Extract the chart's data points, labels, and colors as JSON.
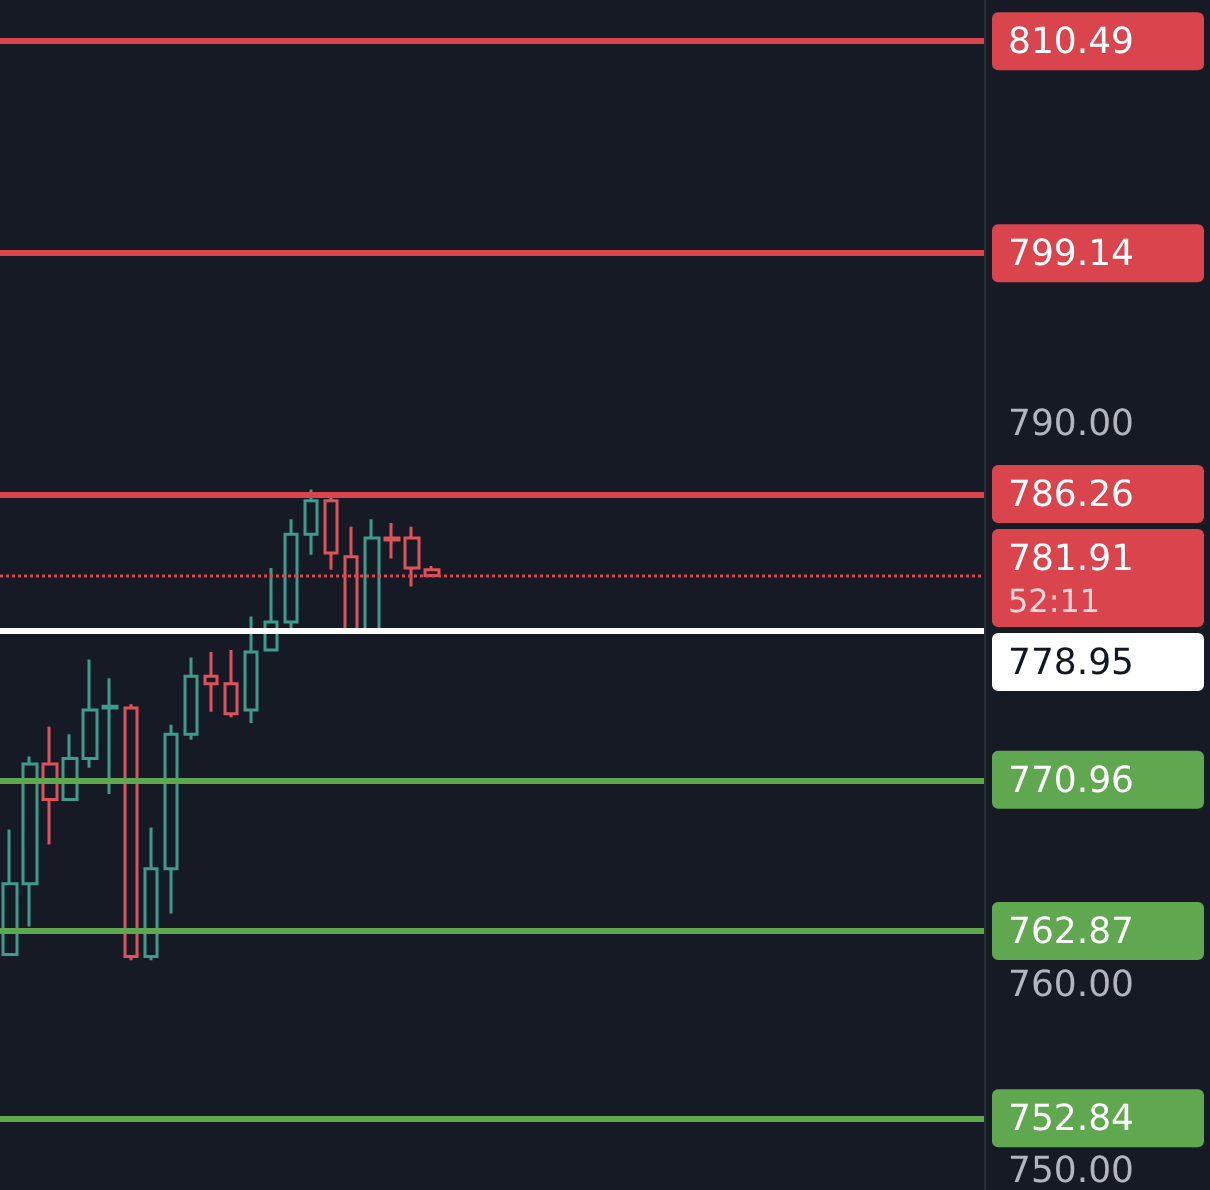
{
  "chart_data": {
    "type": "candlestick",
    "categories": [
      null,
      null,
      null,
      null,
      null,
      null,
      null,
      null,
      null,
      null,
      null,
      null,
      null,
      null,
      null,
      null,
      null,
      null,
      null,
      null,
      null,
      null,
      null,
      null,
      null,
      null,
      null,
      null,
      null,
      null,
      null,
      null,
      null,
      null,
      null,
      null,
      null,
      null,
      null,
      null,
      null,
      null,
      null,
      null,
      null,
      null,
      null,
      null,
      null
    ],
    "ohlc": [
      [
        761.6,
        768.3,
        761.6,
        765.4
      ],
      [
        765.4,
        772.2,
        763.1,
        771.8
      ],
      [
        771.8,
        773.8,
        767.5,
        769.9
      ],
      [
        769.9,
        773.4,
        769.9,
        772.1
      ],
      [
        772.1,
        777.4,
        771.6,
        774.7
      ],
      [
        774.8,
        776.4,
        770.2,
        774.9
      ],
      [
        774.8,
        775.0,
        761.3,
        761.5
      ],
      [
        761.5,
        768.4,
        761.3,
        766.2
      ],
      [
        766.2,
        773.9,
        763.8,
        773.4
      ],
      [
        773.4,
        777.5,
        773.1,
        776.5
      ],
      [
        776.5,
        777.8,
        774.6,
        776.1
      ],
      [
        776.1,
        777.9,
        774.3,
        774.5
      ],
      [
        774.7,
        779.7,
        774.0,
        777.8
      ],
      [
        777.9,
        782.3,
        777.9,
        779.4
      ],
      [
        779.4,
        784.9,
        778.8,
        784.1
      ],
      [
        784.1,
        786.5,
        783.0,
        785.9
      ],
      [
        785.9,
        786.1,
        782.2,
        783.1
      ],
      [
        782.9,
        784.5,
        778.9,
        779.0
      ],
      [
        779.0,
        784.9,
        778.9,
        783.9
      ],
      [
        783.9,
        784.7,
        782.8,
        783.8
      ],
      [
        783.9,
        784.5,
        781.3,
        782.3
      ],
      [
        782.2,
        782.4,
        781.8,
        781.9
      ],
      null,
      null,
      null,
      null,
      null,
      null,
      null,
      null,
      null,
      null,
      null,
      null,
      null,
      null,
      null,
      null,
      null,
      null,
      null,
      null,
      null,
      null,
      null,
      null,
      null,
      null,
      null
    ],
    "colors": [
      "#3f9c8c",
      "#3f9c8c",
      "#e0525a",
      "#3f9c8c",
      "#3f9c8c",
      "#3f9c8c",
      "#e0525a",
      "#3f9c8c",
      "#3f9c8c",
      "#3f9c8c",
      "#e0525a",
      "#e0525a",
      "#3f9c8c",
      "#3f9c8c",
      "#3f9c8c",
      "#3f9c8c",
      "#e0525a",
      "#e0525a",
      "#3f9c8c",
      "#e0525a",
      "#e0525a",
      "#e0525a",
      null,
      null,
      null,
      null,
      null,
      null,
      null,
      null,
      null,
      null,
      null,
      null,
      null,
      null,
      null,
      null,
      null,
      null,
      null,
      null,
      null,
      null,
      null,
      null,
      null,
      null,
      null
    ],
    "ylim": [
      749,
      812.7
    ],
    "yticks": [
      {
        "value": 750,
        "label": "750.00"
      },
      {
        "value": 760,
        "label": "760.00"
      },
      {
        "value": 790,
        "label": "790.00"
      }
    ],
    "ref_lines": [
      {
        "axis": "y",
        "value": 810.49,
        "label": "810.49",
        "color": "#d9444d"
      },
      {
        "axis": "y",
        "value": 799.14,
        "label": "799.14",
        "color": "#d9444d"
      },
      {
        "axis": "y",
        "value": 786.26,
        "label": "786.26",
        "color": "#d9444d"
      },
      {
        "axis": "y",
        "value": 781.91,
        "label": "781.91",
        "color": "#d9444d",
        "line_style": "dotted"
      },
      {
        "axis": "y",
        "value": 778.95,
        "label": "778.95",
        "color": "#ffffff"
      },
      {
        "axis": "y",
        "value": 770.96,
        "label": "770.96",
        "color": "#5fa84f"
      },
      {
        "axis": "y",
        "value": 762.87,
        "label": "762.87",
        "color": "#5fa84f"
      },
      {
        "axis": "y",
        "value": 752.84,
        "label": "752.84",
        "color": "#5fa84f"
      }
    ],
    "annotations": [
      "52:11"
    ],
    "grid": false
  }
}
